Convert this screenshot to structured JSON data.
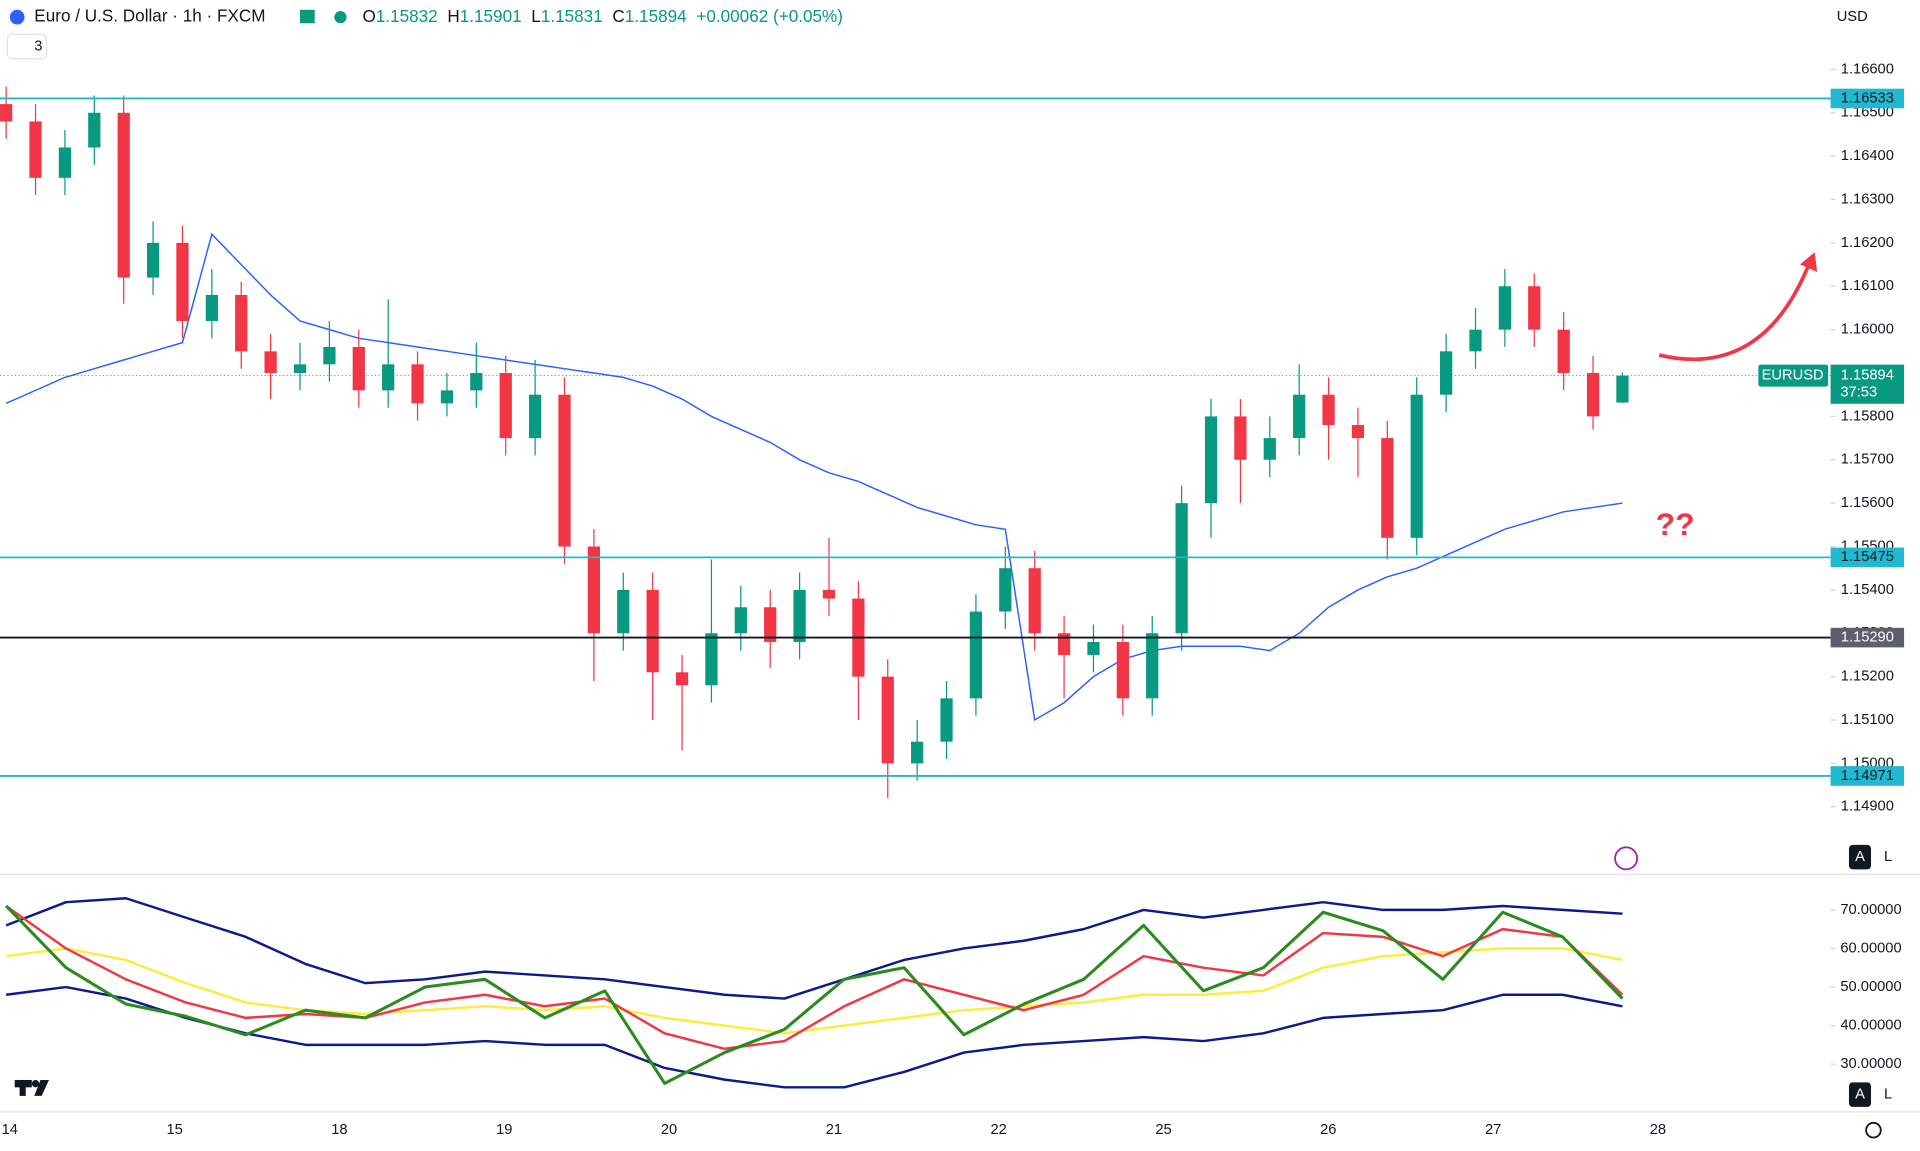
{
  "header": {
    "symbol": "Euro / U.S. Dollar · 1h · FXCM",
    "ohlc": [
      {
        "key": "O",
        "value": "1.15832"
      },
      {
        "key": "H",
        "value": "1.15901"
      },
      {
        "key": "L",
        "value": "1.15831"
      },
      {
        "key": "C",
        "value": "1.15894"
      }
    ],
    "change": "+0.00062 (+0.05%)",
    "indicators": "3",
    "currency": "USD"
  },
  "pane_buttons": [
    "A",
    "L"
  ],
  "x_axis": {
    "days": [
      "14",
      "15",
      "18",
      "19",
      "20",
      "21",
      "22",
      "25",
      "26",
      "27",
      "28"
    ]
  },
  "chart_data": [
    {
      "type": "candlestick",
      "open": [
        1.1652,
        1.1648,
        1.1635,
        1.1642,
        1.165,
        1.1612,
        1.162,
        1.1602,
        1.1608,
        1.1595,
        1.159,
        1.1592,
        1.1596,
        1.1586,
        1.1592,
        1.1583,
        1.1586,
        1.159,
        1.1575,
        1.1585,
        1.155,
        1.153,
        1.154,
        1.1521,
        1.1518,
        1.153,
        1.1536,
        1.1528,
        1.154,
        1.1538,
        1.152,
        1.15,
        1.1505,
        1.1515,
        1.1535,
        1.1545,
        1.153,
        1.1525,
        1.1528,
        1.1515,
        1.153,
        1.156,
        1.158,
        1.157,
        1.1575,
        1.1585,
        1.1578,
        1.1575,
        1.1552,
        1.1585,
        1.1595,
        1.16,
        1.161,
        1.16,
        1.159,
        1.15832
      ],
      "high": [
        1.1656,
        1.1652,
        1.1646,
        1.1654,
        1.1654,
        1.1625,
        1.1624,
        1.1614,
        1.1611,
        1.1599,
        1.1597,
        1.1602,
        1.16,
        1.1607,
        1.1595,
        1.159,
        1.1597,
        1.1594,
        1.1593,
        1.1589,
        1.1554,
        1.1544,
        1.1544,
        1.1525,
        1.1547,
        1.1541,
        1.154,
        1.1544,
        1.1552,
        1.1542,
        1.1524,
        1.151,
        1.1519,
        1.1539,
        1.155,
        1.1549,
        1.1534,
        1.1532,
        1.1532,
        1.1534,
        1.1564,
        1.1584,
        1.1584,
        1.158,
        1.1592,
        1.1589,
        1.1582,
        1.1579,
        1.1589,
        1.1599,
        1.1605,
        1.1614,
        1.1613,
        1.1604,
        1.1594,
        1.15901
      ],
      "low": [
        1.1644,
        1.1631,
        1.1631,
        1.1638,
        1.1606,
        1.1608,
        1.1598,
        1.1598,
        1.1591,
        1.1584,
        1.1586,
        1.1588,
        1.1582,
        1.1582,
        1.1579,
        1.158,
        1.1582,
        1.1571,
        1.1571,
        1.1546,
        1.1519,
        1.1526,
        1.151,
        1.1503,
        1.1514,
        1.1526,
        1.1522,
        1.1524,
        1.1534,
        1.151,
        1.1492,
        1.1496,
        1.1501,
        1.1511,
        1.1531,
        1.1526,
        1.1515,
        1.1521,
        1.1511,
        1.1511,
        1.1526,
        1.1552,
        1.156,
        1.1566,
        1.1571,
        1.157,
        1.1566,
        1.1547,
        1.1548,
        1.1581,
        1.1591,
        1.1596,
        1.1596,
        1.1586,
        1.1577,
        1.15831
      ],
      "close": [
        1.1648,
        1.1635,
        1.1642,
        1.165,
        1.1612,
        1.162,
        1.1602,
        1.1608,
        1.1595,
        1.159,
        1.1592,
        1.1596,
        1.1586,
        1.1592,
        1.1583,
        1.1586,
        1.159,
        1.1575,
        1.1585,
        1.155,
        1.153,
        1.154,
        1.1521,
        1.1518,
        1.153,
        1.1536,
        1.1528,
        1.154,
        1.1538,
        1.152,
        1.15,
        1.1505,
        1.1515,
        1.1535,
        1.1545,
        1.153,
        1.1525,
        1.1528,
        1.1515,
        1.153,
        1.156,
        1.158,
        1.157,
        1.1575,
        1.1585,
        1.1578,
        1.1575,
        1.1552,
        1.1585,
        1.1595,
        1.16,
        1.161,
        1.16,
        1.159,
        1.158,
        1.15894
      ],
      "colors": {
        "up": "#089981",
        "down": "#f23645"
      },
      "ma": {
        "color": "#2962ff",
        "values": [
          1.1583,
          1.1586,
          1.1589,
          1.1591,
          1.1593,
          1.1595,
          1.1597,
          1.1622,
          1.1615,
          1.1608,
          1.1602,
          1.16,
          1.1598,
          1.1597,
          1.1596,
          1.1595,
          1.1594,
          1.1593,
          1.1592,
          1.1591,
          1.159,
          1.1589,
          1.1587,
          1.1584,
          1.158,
          1.1577,
          1.1574,
          1.157,
          1.1567,
          1.1565,
          1.1562,
          1.1559,
          1.1557,
          1.1555,
          1.1554,
          1.151,
          1.1514,
          1.152,
          1.1524,
          1.1526,
          1.1527,
          1.1527,
          1.1527,
          1.1526,
          1.153,
          1.1536,
          1.154,
          1.1543,
          1.1545,
          1.1548,
          1.1551,
          1.1554,
          1.1556,
          1.1558,
          1.1559,
          1.156
        ]
      },
      "ylim": [
        1.1475,
        1.1676
      ],
      "yticks": [
        {
          "value": 1.166,
          "label": "1.16600"
        },
        {
          "value": 1.165,
          "label": "1.16500"
        },
        {
          "value": 1.164,
          "label": "1.16400"
        },
        {
          "value": 1.163,
          "label": "1.16300"
        },
        {
          "value": 1.162,
          "label": "1.16200"
        },
        {
          "value": 1.161,
          "label": "1.16100"
        },
        {
          "value": 1.16,
          "label": "1.16000"
        },
        {
          "value": 1.159,
          "label": "1.15900"
        },
        {
          "value": 1.158,
          "label": "1.15800"
        },
        {
          "value": 1.157,
          "label": "1.15700"
        },
        {
          "value": 1.156,
          "label": "1.15600"
        },
        {
          "value": 1.155,
          "label": "1.15500"
        },
        {
          "value": 1.154,
          "label": "1.15400"
        },
        {
          "value": 1.153,
          "label": "1.15300"
        },
        {
          "value": 1.152,
          "label": "1.15200"
        },
        {
          "value": 1.151,
          "label": "1.15100"
        },
        {
          "value": 1.15,
          "label": "1.15000"
        },
        {
          "value": 1.149,
          "label": "1.14900"
        }
      ],
      "levels": [
        {
          "value": 1.16533,
          "label": "1.16533",
          "color": "#22b8cf"
        },
        {
          "value": 1.15475,
          "label": "1.15475",
          "color": "#22b8cf"
        },
        {
          "value": 1.1529,
          "label": "1.15290",
          "color": "#131722"
        },
        {
          "value": 1.14971,
          "label": "1.14971",
          "color": "#22b8cf"
        }
      ],
      "last": {
        "value": 1.15894,
        "label": "1.15894",
        "symbol": "EURUSD",
        "countdown": "37:53",
        "color": "#089981"
      },
      "annotation": "??"
    },
    {
      "type": "line",
      "ylim": [
        18.6,
        78.6
      ],
      "yticks": [
        {
          "value": 30,
          "label": "30.00000"
        },
        {
          "value": 40,
          "label": "40.00000"
        },
        {
          "value": 50,
          "label": "50.00000"
        },
        {
          "value": 60,
          "label": "60.00000"
        },
        {
          "value": 70,
          "label": "70.00000"
        }
      ],
      "series": [
        {
          "color": "#0d1a8c",
          "values": [
            66,
            72,
            73,
            68,
            63,
            56,
            51,
            52,
            54,
            53,
            52,
            50,
            48,
            47,
            52,
            57,
            60,
            62,
            65,
            70,
            68,
            70,
            72,
            70,
            70,
            71,
            70,
            69
          ]
        },
        {
          "color": "#0d1a8c",
          "values": [
            48,
            50,
            47,
            42,
            38,
            35,
            35,
            35,
            36,
            35,
            35,
            29,
            26,
            24,
            24,
            28,
            33,
            35,
            36,
            37,
            36,
            38,
            42,
            43,
            44,
            48,
            48,
            45
          ]
        },
        {
          "color": "#ffeb3b",
          "values": [
            58,
            60,
            57,
            51,
            46,
            44,
            43,
            44,
            45,
            44,
            45,
            42,
            40,
            38,
            40,
            42,
            44,
            45,
            46,
            48,
            48,
            49,
            55,
            58,
            59,
            60,
            60,
            57
          ]
        },
        {
          "color": "#f23645",
          "values": [
            71,
            60,
            52,
            46,
            42,
            43,
            42,
            46,
            48,
            45,
            47,
            38,
            34,
            36,
            45,
            52,
            48,
            44,
            48,
            58,
            55,
            53,
            64,
            63,
            58,
            65,
            63,
            48
          ]
        },
        {
          "color": "#2a8c1e",
          "values": [
            71,
            55,
            45.6,
            42.4,
            37.6,
            44,
            42,
            50,
            52,
            42,
            49,
            25,
            33,
            39,
            52,
            55,
            37.6,
            45.6,
            52,
            66,
            49,
            55,
            69.4,
            64.6,
            52,
            69.4,
            63,
            47
          ]
        }
      ]
    }
  ]
}
